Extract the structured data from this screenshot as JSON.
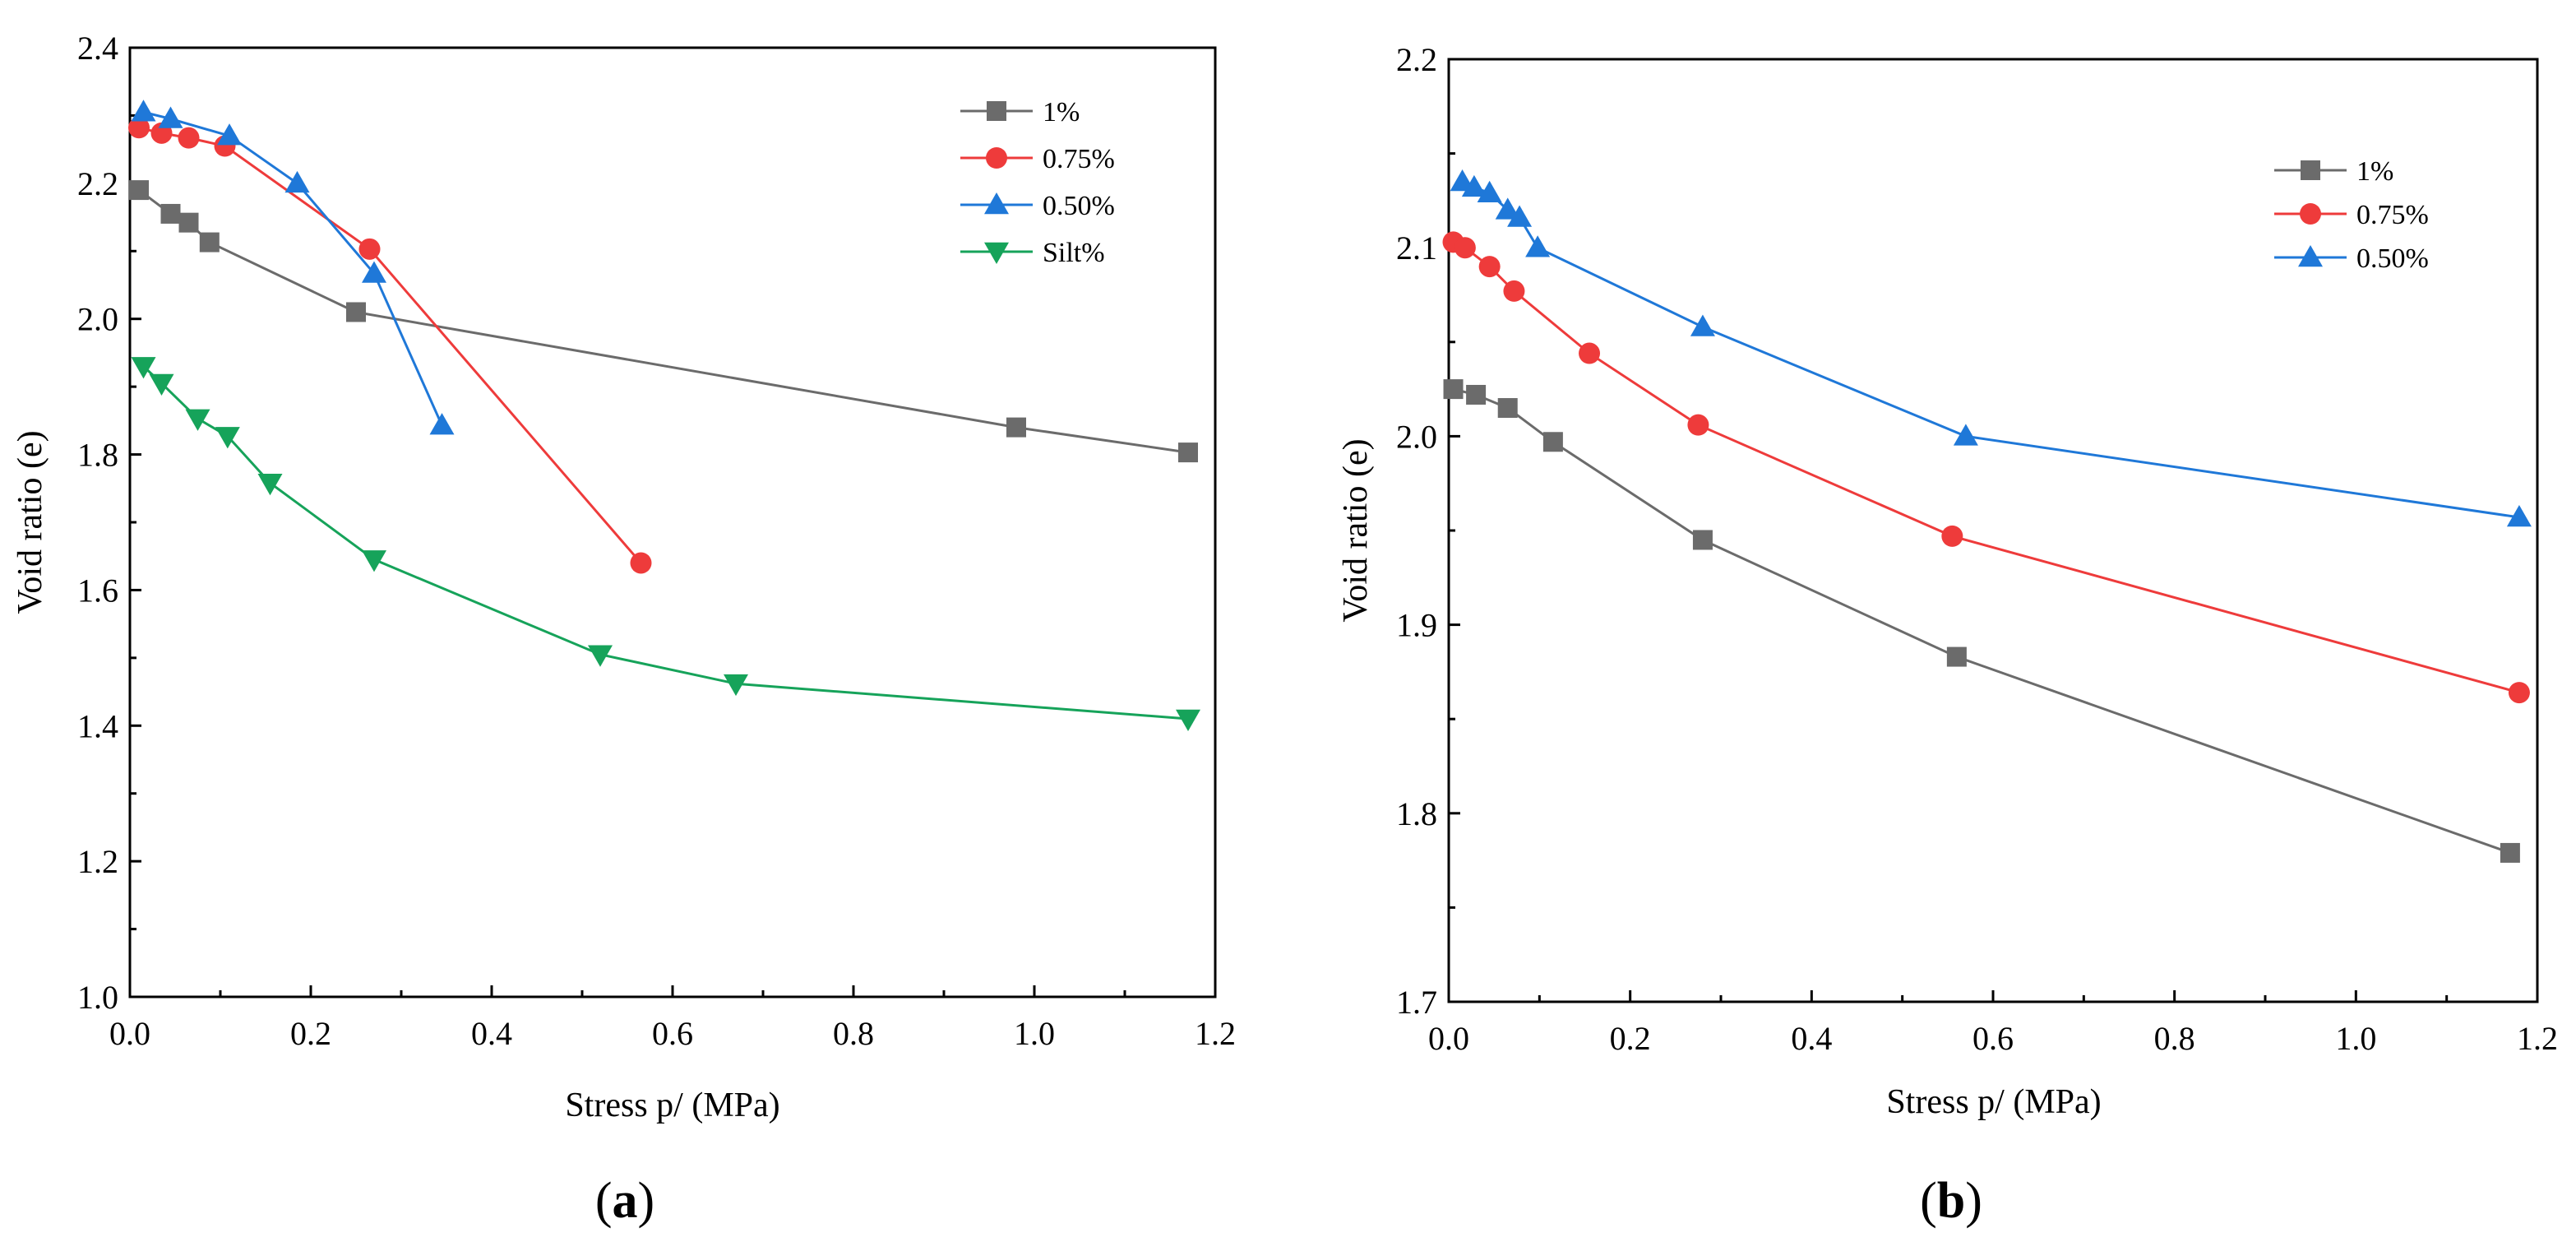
{
  "chart_data": [
    {
      "type": "line",
      "panel_label": "(a)",
      "panel_letter": "a",
      "xlabel": "Stress p/ (MPa)",
      "ylabel": "Void ratio (e)",
      "xlim": [
        0.0,
        1.2
      ],
      "ylim": [
        1.0,
        2.4
      ],
      "xticks": [
        "0.0",
        "0.2",
        "0.4",
        "0.6",
        "0.8",
        "1.0",
        "1.2"
      ],
      "yticks": [
        "1.0",
        "1.2",
        "1.4",
        "1.6",
        "1.8",
        "2.0",
        "2.2",
        "2.4"
      ],
      "grid": false,
      "legend_position": "top-right",
      "series": [
        {
          "name": "1%",
          "color": "#6b6b6b",
          "marker": "square",
          "x": [
            0.01,
            0.045,
            0.065,
            0.088,
            0.25,
            0.98,
            1.17
          ],
          "y": [
            2.19,
            2.155,
            2.142,
            2.113,
            2.01,
            1.84,
            1.803
          ]
        },
        {
          "name": "0.75%",
          "color": "#ee3b3b",
          "marker": "circle",
          "x": [
            0.01,
            0.035,
            0.065,
            0.105,
            0.265,
            0.565
          ],
          "y": [
            2.282,
            2.274,
            2.267,
            2.255,
            2.103,
            1.64
          ]
        },
        {
          "name": "0.50%",
          "color": "#1f78d8",
          "marker": "triangle-up",
          "x": [
            0.015,
            0.045,
            0.11,
            0.185,
            0.27,
            0.345
          ],
          "y": [
            2.305,
            2.295,
            2.27,
            2.2,
            2.067,
            1.843
          ]
        },
        {
          "name": "Silt%",
          "color": "#16a35a",
          "marker": "triangle-down",
          "x": [
            0.015,
            0.035,
            0.075,
            0.108,
            0.155,
            0.27,
            0.52,
            0.67,
            1.17
          ],
          "y": [
            1.93,
            1.905,
            1.853,
            1.827,
            1.758,
            1.645,
            1.505,
            1.462,
            1.41
          ]
        }
      ]
    },
    {
      "type": "line",
      "panel_label": "(b)",
      "panel_letter": "b",
      "xlabel": "Stress p/ (MPa)",
      "ylabel": "Void ratio (e)",
      "xlim": [
        0.0,
        1.2
      ],
      "ylim": [
        1.7,
        2.2
      ],
      "xticks": [
        "0.0",
        "0.2",
        "0.4",
        "0.6",
        "0.8",
        "1.0",
        "1.2"
      ],
      "yticks": [
        "1.7",
        "1.8",
        "1.9",
        "2.0",
        "2.1",
        "2.2"
      ],
      "grid": false,
      "legend_position": "top-right",
      "series": [
        {
          "name": "1%",
          "color": "#6b6b6b",
          "marker": "square",
          "x": [
            0.005,
            0.03,
            0.065,
            0.115,
            0.28,
            0.56,
            1.17
          ],
          "y": [
            2.025,
            2.022,
            2.015,
            1.997,
            1.945,
            1.883,
            1.779
          ]
        },
        {
          "name": "0.75%",
          "color": "#ee3b3b",
          "marker": "circle",
          "x": [
            0.005,
            0.018,
            0.045,
            0.072,
            0.155,
            0.275,
            0.555,
            1.18
          ],
          "y": [
            2.103,
            2.1,
            2.09,
            2.077,
            2.044,
            2.006,
            1.947,
            1.864
          ]
        },
        {
          "name": "0.50%",
          "color": "#1f78d8",
          "marker": "triangle-up",
          "x": [
            0.015,
            0.028,
            0.045,
            0.065,
            0.078,
            0.098,
            0.28,
            0.57,
            1.18
          ],
          "y": [
            2.135,
            2.132,
            2.129,
            2.12,
            2.116,
            2.1,
            2.058,
            2.0,
            1.957
          ]
        }
      ]
    }
  ]
}
